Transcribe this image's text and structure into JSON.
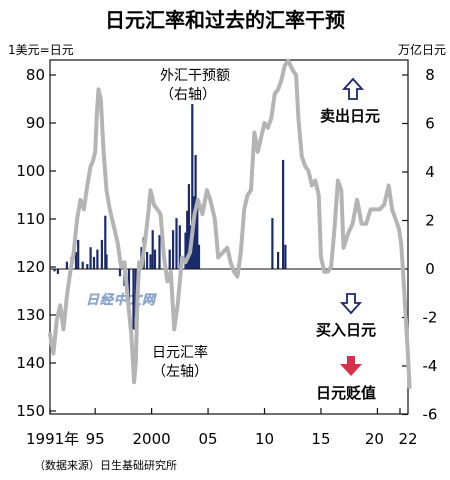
{
  "title": "日元汇率和过去的汇率干预",
  "source": "（数据来源）日生基础研究所",
  "watermark": "日经中文网",
  "colors": {
    "rate_line": "#b4b4b4",
    "intervention_bar": "#1a2a6b",
    "down_arrow": "#d9304a",
    "axis": "#111111"
  },
  "annotations": {
    "intervention_label_1": "外汇干预额",
    "intervention_label_2": "（右轴）",
    "rate_label_1": "日元汇率",
    "rate_label_2": "（左轴）",
    "sell_yen": "卖出日元",
    "buy_yen": "买入日元",
    "yen_weaker": "日元贬值"
  },
  "icons": {
    "sell_arrow": "hollow-up-arrow-icon",
    "buy_arrow": "hollow-down-arrow-icon",
    "weaker_arrow": "red-down-arrow-icon"
  },
  "chart_data": {
    "type": "line",
    "grid": false,
    "x_ticks": [
      "1991年",
      "95",
      "2000",
      "05",
      "10",
      "15",
      "20",
      "22"
    ],
    "left_axis": {
      "unit_label": "1美元=日元",
      "ticks": [
        "80",
        "90",
        "100",
        "110",
        "120",
        "130",
        "140",
        "150"
      ],
      "ylim": [
        150,
        77
      ],
      "inverted": true
    },
    "right_axis": {
      "unit_label": "万亿日元",
      "ticks": [
        "8",
        "6",
        "4",
        "2",
        "0",
        "-2",
        "-4",
        "-6"
      ],
      "ylim": [
        -6,
        8
      ]
    },
    "series": [
      {
        "name": "日元汇率",
        "axis": "left",
        "style": "line",
        "x": [
          1991.0,
          1991.3,
          1991.6,
          1991.9,
          1992.2,
          1992.5,
          1992.8,
          1993.1,
          1993.4,
          1993.7,
          1994.0,
          1994.3,
          1994.6,
          1994.8,
          1995.0,
          1995.15,
          1995.3,
          1995.5,
          1995.75,
          1996.0,
          1996.3,
          1996.6,
          1997.0,
          1997.3,
          1997.6,
          1997.9,
          1998.2,
          1998.45,
          1998.6,
          1998.75,
          1998.9,
          1999.1,
          1999.4,
          1999.7,
          1999.9,
          2000.2,
          2000.5,
          2000.8,
          2001.1,
          2001.4,
          2001.7,
          2002.0,
          2002.3,
          2002.7,
          2003.0,
          2003.4,
          2003.8,
          2004.1,
          2004.5,
          2004.9,
          2005.2,
          2005.6,
          2005.9,
          2006.3,
          2006.7,
          2007.0,
          2007.3,
          2007.6,
          2007.9,
          2008.2,
          2008.5,
          2008.8,
          2009.1,
          2009.4,
          2009.7,
          2010.0,
          2010.3,
          2010.6,
          2010.9,
          2011.2,
          2011.5,
          2011.8,
          2012.1,
          2012.5,
          2012.8,
          2013.0,
          2013.3,
          2013.6,
          2013.9,
          2014.2,
          2014.5,
          2014.8,
          2015.0,
          2015.3,
          2015.6,
          2015.9,
          2016.2,
          2016.5,
          2016.8,
          2017.0,
          2017.4,
          2017.8,
          2018.2,
          2018.6,
          2019.0,
          2019.4,
          2019.8,
          2020.2,
          2020.6,
          2021.0,
          2021.3,
          2021.6,
          2021.9,
          2022.1,
          2022.3,
          2022.5,
          2022.7,
          2022.85
        ],
        "values": [
          134,
          138,
          131,
          128,
          133,
          126,
          121,
          117,
          110,
          106,
          108,
          103,
          99,
          98,
          96,
          88,
          83,
          85,
          96,
          104,
          108,
          111,
          115,
          120,
          119,
          127,
          134,
          144,
          140,
          126,
          119,
          120,
          115,
          109,
          104,
          107,
          108,
          109,
          118,
          123,
          121,
          133,
          128,
          118,
          119,
          117,
          109,
          106,
          109,
          104,
          106,
          110,
          118,
          117,
          116,
          119,
          121,
          122,
          117,
          108,
          105,
          104,
          92,
          96,
          93,
          90,
          91,
          89,
          84,
          83,
          81,
          78,
          77,
          79,
          80,
          89,
          97,
          99,
          100,
          103,
          102,
          105,
          118,
          121,
          121,
          120,
          112,
          102,
          104,
          116,
          113,
          111,
          106,
          111,
          111,
          108,
          108,
          108,
          107,
          103,
          108,
          110,
          112,
          115,
          122,
          130,
          138,
          145
        ]
      },
      {
        "name": "外汇干预额",
        "axis": "right",
        "style": "bars",
        "x": [
          1991.4,
          1991.7,
          1992.5,
          1992.9,
          1993.3,
          1993.5,
          1993.9,
          1994.3,
          1994.6,
          1994.9,
          1995.2,
          1995.6,
          1995.9,
          1996.0,
          1997.2,
          1997.6,
          1998.0,
          1998.4,
          1998.6,
          1999.1,
          1999.3,
          1999.6,
          1999.9,
          2000.1,
          2000.3,
          2000.7,
          2001.6,
          2001.9,
          2002.2,
          2002.5,
          2003.0,
          2003.15,
          2003.3,
          2003.45,
          2003.6,
          2003.75,
          2003.9,
          2004.05,
          2004.2,
          2010.7,
          2011.2,
          2011.65,
          2011.85
        ],
        "values": [
          -0.1,
          -0.2,
          0.3,
          0.5,
          0.7,
          1.2,
          0.3,
          0.2,
          0.9,
          0.5,
          0.8,
          1.2,
          2.2,
          0.6,
          -0.3,
          -0.7,
          -1.5,
          -2.5,
          -2.0,
          0.9,
          1.3,
          0.7,
          0.6,
          1.6,
          0.8,
          1.4,
          0.8,
          1.6,
          2.1,
          1.8,
          1.5,
          2.4,
          3.5,
          1.8,
          6.8,
          3.0,
          4.7,
          2.7,
          1.0,
          2.1,
          0.7,
          4.5,
          1.0
        ]
      }
    ]
  }
}
